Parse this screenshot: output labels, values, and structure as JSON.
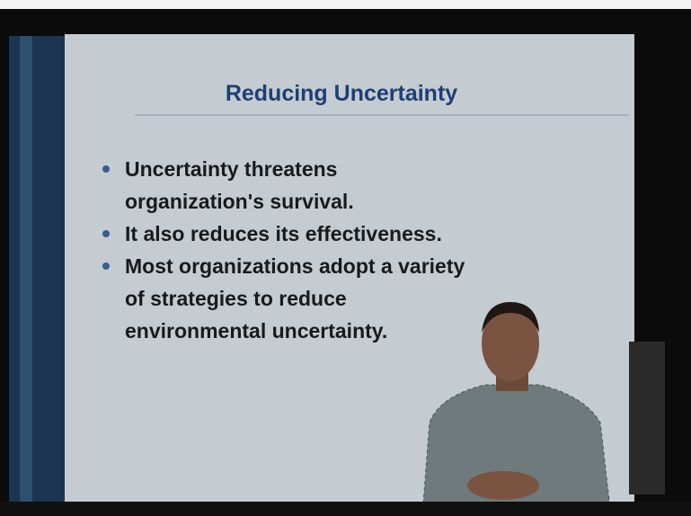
{
  "slide": {
    "title": "Reducing Uncertainty",
    "bullets": [
      [
        "Uncertainty threatens",
        "organization's survival."
      ],
      [
        "It also reduces its effectiveness."
      ],
      [
        "Most organizations adopt a variety",
        "of strategies to reduce",
        "environmental uncertainty."
      ]
    ]
  }
}
